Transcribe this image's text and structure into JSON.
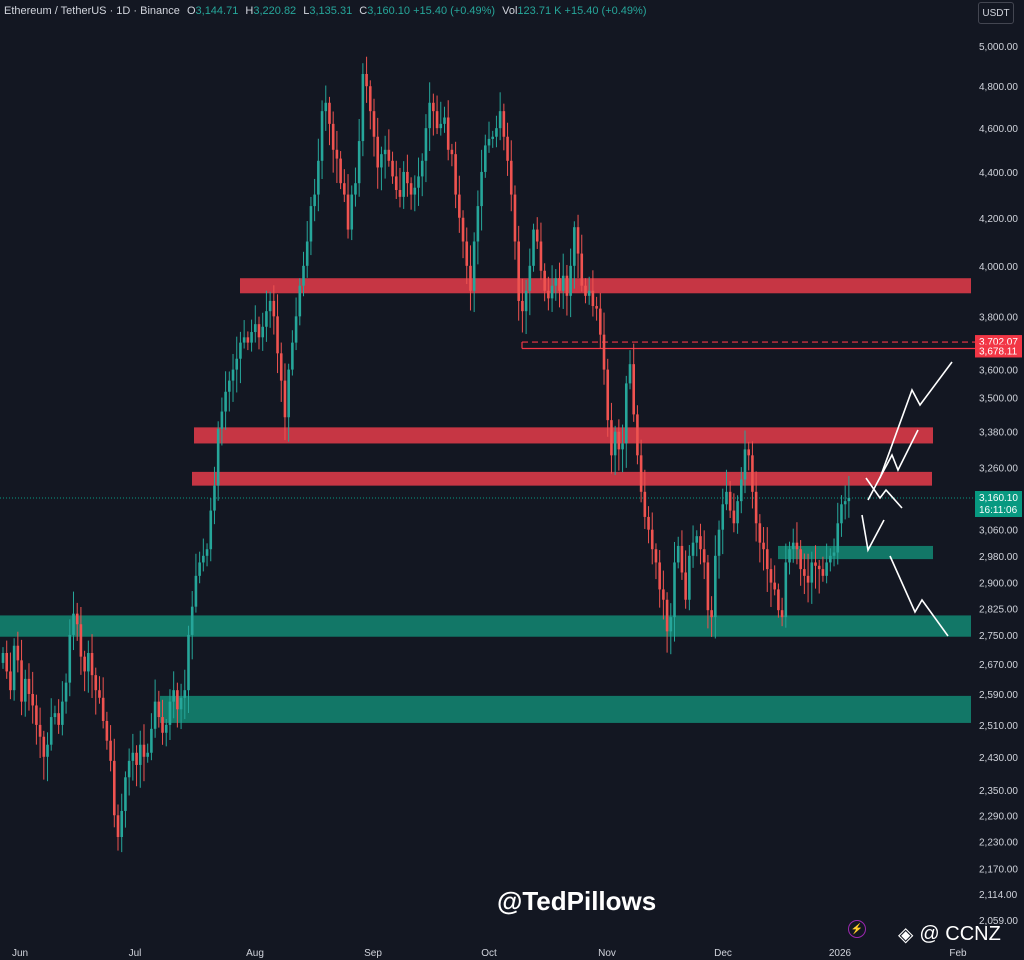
{
  "header": {
    "symbol": "Ethereum / TetherUS · 1D · Binance",
    "o_label": "O",
    "o_value": "3,144.71",
    "h_label": "H",
    "h_value": "3,220.82",
    "l_label": "L",
    "l_value": "3,135.31",
    "c_label": "C",
    "c_value": "3,160.10",
    "change": "+15.40 (+0.49%)",
    "vol_label": "Vol",
    "vol_value": "123.71 K",
    "vol_change": "+15.40 (+0.49%)"
  },
  "currency_button": "USDT",
  "watermark": "@TedPillows",
  "brand": "@ CCNZ",
  "colors": {
    "up": "#26a69a",
    "down": "#ef5350",
    "background": "#131722",
    "resistance": "#d63a48",
    "support": "#12806e"
  },
  "chart_data": {
    "type": "candlestick",
    "title": "Ethereum / TetherUS · 1D · Binance",
    "x_ticks": [
      "Jun",
      "Jul",
      "Aug",
      "Sep",
      "Oct",
      "Nov",
      "Dec",
      "2026",
      "Feb"
    ],
    "y_ticks": [
      "5,000.00",
      "4,800.00",
      "4,600.00",
      "4,400.00",
      "4,200.00",
      "4,000.00",
      "3,800.00",
      "3,600.00",
      "3,500.00",
      "3,380.00",
      "3,260.00",
      "3,060.00",
      "2,980.00",
      "2,900.00",
      "2,825.00",
      "2,750.00",
      "2,670.00",
      "2,590.00",
      "2,510.00",
      "2,430.00",
      "2,350.00",
      "2,290.00",
      "2,230.00",
      "2,170.00",
      "2,114.00",
      "2,059.00"
    ],
    "y_scale": "log",
    "grid": false,
    "price_labels": [
      {
        "value": "3,702.07",
        "color": "#f23645"
      },
      {
        "value": "3,678.11",
        "color": "#f23645"
      },
      {
        "value": "3,160.10",
        "sub": "16:11:06",
        "color": "#089981"
      }
    ],
    "resistance_zones": [
      [
        3890,
        3950
      ],
      [
        3340,
        3395
      ],
      [
        3200,
        3245
      ]
    ],
    "support_zones": [
      [
        2970,
        3010
      ],
      [
        2745,
        2805
      ],
      [
        2515,
        2585
      ]
    ],
    "target_lines": [
      3702.07,
      3678.11
    ],
    "current_price": 3160.1,
    "candles_close": [
      2700,
      2650,
      2600,
      2720,
      2680,
      2570,
      2630,
      2590,
      2560,
      2510,
      2480,
      2430,
      2460,
      2530,
      2540,
      2510,
      2570,
      2620,
      2750,
      2810,
      2780,
      2690,
      2650,
      2700,
      2640,
      2600,
      2580,
      2520,
      2470,
      2420,
      2290,
      2240,
      2300,
      2380,
      2420,
      2440,
      2410,
      2460,
      2430,
      2440,
      2500,
      2570,
      2530,
      2490,
      2510,
      2570,
      2600,
      2550,
      2580,
      2600,
      2750,
      2830,
      2920,
      2960,
      2980,
      3000,
      3120,
      3200,
      3390,
      3450,
      3520,
      3560,
      3600,
      3640,
      3700,
      3720,
      3700,
      3740,
      3770,
      3720,
      3760,
      3820,
      3860,
      3800,
      3660,
      3560,
      3430,
      3600,
      3700,
      3800,
      3920,
      4000,
      4100,
      4250,
      4300,
      4450,
      4680,
      4720,
      4620,
      4500,
      4460,
      4350,
      4300,
      4150,
      4300,
      4350,
      4540,
      4860,
      4800,
      4680,
      4560,
      4420,
      4480,
      4500,
      4450,
      4380,
      4320,
      4290,
      4400,
      4350,
      4300,
      4330,
      4380,
      4450,
      4600,
      4720,
      4680,
      4600,
      4620,
      4650,
      4500,
      4480,
      4300,
      4200,
      4100,
      4000,
      3900,
      4100,
      4250,
      4400,
      4520,
      4550,
      4560,
      4600,
      4680,
      4560,
      4450,
      4300,
      4100,
      3860,
      3820,
      3900,
      4000,
      4150,
      4100,
      3980,
      3900,
      3870,
      3920,
      3950,
      3900,
      3960,
      3880,
      4000,
      4160,
      4050,
      3920,
      3880,
      3900,
      3840,
      3830,
      3730,
      3600,
      3420,
      3300,
      3380,
      3320,
      3340,
      3550,
      3620,
      3440,
      3300,
      3180,
      3100,
      3060,
      3000,
      2960,
      2880,
      2850,
      2760,
      2800,
      2960,
      3010,
      2930,
      2850,
      2980,
      3020,
      3040,
      3000,
      2960,
      2820,
      2800,
      2980,
      3060,
      3140,
      3180,
      3120,
      3080,
      3150,
      3220,
      3320,
      3300,
      3180,
      3080,
      3020,
      3000,
      2940,
      2900,
      2880,
      2820,
      2800,
      2960,
      3000,
      3020,
      3000,
      2940,
      2920,
      2900,
      2960,
      2950,
      2940,
      2920,
      2960,
      2980,
      2990,
      3080,
      3140,
      3150,
      3160
    ]
  }
}
